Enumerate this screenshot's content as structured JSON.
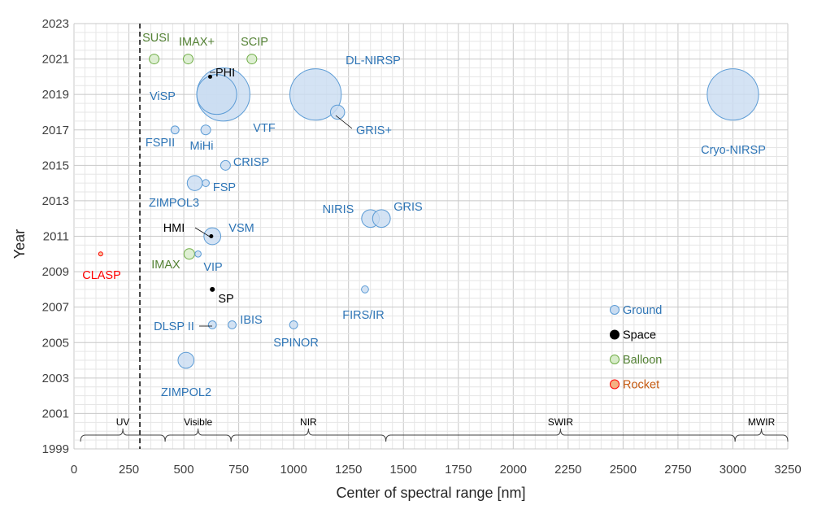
{
  "chart_data": {
    "type": "bubble",
    "title": "",
    "xlabel": "Center of spectral range [nm]",
    "ylabel": "Year",
    "xlim": [
      0,
      3250
    ],
    "ylim": [
      1999,
      2023
    ],
    "xticks": [
      "0",
      "250",
      "500",
      "750",
      "1000",
      "1250",
      "1500",
      "1750",
      "2000",
      "2250",
      "2500",
      "2750",
      "3000",
      "3250"
    ],
    "yticks": [
      "1999",
      "2001",
      "2003",
      "2005",
      "2007",
      "2009",
      "2011",
      "2013",
      "2015",
      "2017",
      "2019",
      "2021",
      "2023"
    ],
    "minor_grid": true,
    "uv_visible_boundary_nm": 300,
    "category_colors": {
      "Ground": {
        "fill": "#c9dcf1",
        "stroke": "#5b9bd5",
        "text": "#2e75b6"
      },
      "Space": {
        "fill": "#000000",
        "stroke": "#000000",
        "text": "#000000"
      },
      "Balloon": {
        "fill": "#d7ecc9",
        "stroke": "#70ad47",
        "text": "#548235"
      },
      "Rocket": {
        "fill": "#f4b183",
        "stroke": "#ff0000",
        "text": "#ff0000"
      }
    },
    "points": [
      {
        "name": "ViSP",
        "x": 680,
        "y": 2019,
        "size": 3.0,
        "category": "Ground"
      },
      {
        "name": "VTF",
        "x": 650,
        "y": 2019,
        "size": 2.25,
        "category": "Ground"
      },
      {
        "name": "DL-NIRSP",
        "x": 1100,
        "y": 2019,
        "size": 2.9,
        "category": "Ground"
      },
      {
        "name": "Cryo-NIRSP",
        "x": 3000,
        "y": 2019,
        "size": 2.9,
        "category": "Ground"
      },
      {
        "name": "GRIS+",
        "x": 1200,
        "y": 2018,
        "size": 0.8,
        "category": "Ground"
      },
      {
        "name": "PHI",
        "x": 620,
        "y": 2020,
        "size": 0.1,
        "category": "Space"
      },
      {
        "name": "SUSI",
        "x": 365,
        "y": 2021,
        "size": 0.55,
        "category": "Balloon"
      },
      {
        "name": "IMAX+",
        "x": 520,
        "y": 2021,
        "size": 0.55,
        "category": "Balloon"
      },
      {
        "name": "SCIP",
        "x": 810,
        "y": 2021,
        "size": 0.55,
        "category": "Balloon"
      },
      {
        "name": "FSPII",
        "x": 460,
        "y": 2017,
        "size": 0.45,
        "category": "Ground"
      },
      {
        "name": "MiHi",
        "x": 600,
        "y": 2017,
        "size": 0.55,
        "category": "Ground"
      },
      {
        "name": "CRISP",
        "x": 690,
        "y": 2015,
        "size": 0.55,
        "category": "Ground"
      },
      {
        "name": "FSP",
        "x": 600,
        "y": 2014,
        "size": 0.4,
        "category": "Ground"
      },
      {
        "name": "ZIMPOL3",
        "x": 550,
        "y": 2014,
        "size": 0.85,
        "category": "Ground"
      },
      {
        "name": "NIRIS",
        "x": 1350,
        "y": 2012,
        "size": 1.0,
        "category": "Ground"
      },
      {
        "name": "GRIS",
        "x": 1400,
        "y": 2012,
        "size": 1.0,
        "category": "Ground"
      },
      {
        "name": "HMI",
        "x": 625,
        "y": 2011,
        "size": 0.1,
        "category": "Space"
      },
      {
        "name": "VSM",
        "x": 630,
        "y": 2011,
        "size": 0.95,
        "category": "Ground"
      },
      {
        "name": "IMAX",
        "x": 525,
        "y": 2010,
        "size": 0.6,
        "category": "Balloon"
      },
      {
        "name": "VIP",
        "x": 565,
        "y": 2010,
        "size": 0.35,
        "category": "Ground"
      },
      {
        "name": "CLASP",
        "x": 121.6,
        "y": 2010,
        "size": 0.15,
        "category": "Rocket"
      },
      {
        "name": "FIRS/IR",
        "x": 1325,
        "y": 2008,
        "size": 0.4,
        "category": "Ground"
      },
      {
        "name": "SP",
        "x": 630,
        "y": 2008,
        "size": 0.28,
        "category": "Space"
      },
      {
        "name": "DLSP II",
        "x": 630,
        "y": 2006,
        "size": 0.45,
        "category": "Ground"
      },
      {
        "name": "IBIS",
        "x": 720,
        "y": 2006,
        "size": 0.45,
        "category": "Ground"
      },
      {
        "name": "SPINOR",
        "x": 1000,
        "y": 2006,
        "size": 0.45,
        "category": "Ground"
      },
      {
        "name": "ZIMPOL2",
        "x": 510,
        "y": 2004,
        "size": 0.9,
        "category": "Ground"
      }
    ],
    "bands": [
      {
        "name": "UV",
        "from": 30,
        "to": 415
      },
      {
        "name": "Visible",
        "from": 415,
        "to": 715
      },
      {
        "name": "NIR",
        "from": 715,
        "to": 1420
      },
      {
        "name": "SWIR",
        "from": 1420,
        "to": 3010
      },
      {
        "name": "MWIR",
        "from": 3010,
        "to": 3250
      }
    ],
    "legend": {
      "position": "bottom-right",
      "entries": [
        "Ground",
        "Space",
        "Balloon",
        "Rocket"
      ]
    }
  }
}
